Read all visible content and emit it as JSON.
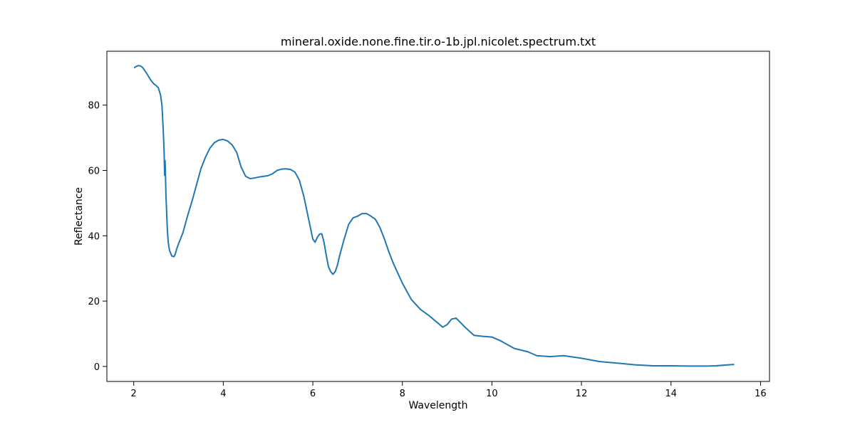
{
  "chart_data": {
    "type": "line",
    "title": "mineral.oxide.none.fine.tir.o-1b.jpl.nicolet.spectrum.txt",
    "xlabel": "Wavelength",
    "ylabel": "Reflectance",
    "xlim": [
      1.4,
      16.2
    ],
    "ylim": [
      -4.6,
      96.5
    ],
    "xticks": [
      2,
      4,
      6,
      8,
      10,
      12,
      14,
      16
    ],
    "yticks": [
      0,
      20,
      40,
      60,
      80
    ],
    "grid": false,
    "legend": "none",
    "series": [
      {
        "color": "#1f77b4",
        "x": [
          2.02,
          2.05,
          2.08,
          2.1,
          2.15,
          2.2,
          2.25,
          2.3,
          2.35,
          2.4,
          2.45,
          2.5,
          2.55,
          2.6,
          2.63,
          2.66,
          2.68,
          2.69,
          2.7,
          2.71,
          2.72,
          2.73,
          2.75,
          2.77,
          2.8,
          2.85,
          2.9,
          2.93,
          2.96,
          3.0,
          3.1,
          3.2,
          3.3,
          3.4,
          3.5,
          3.6,
          3.7,
          3.8,
          3.9,
          4.0,
          4.1,
          4.2,
          4.3,
          4.4,
          4.5,
          4.6,
          4.7,
          4.8,
          4.9,
          5.0,
          5.1,
          5.2,
          5.3,
          5.4,
          5.5,
          5.6,
          5.7,
          5.8,
          5.9,
          6.0,
          6.05,
          6.1,
          6.15,
          6.2,
          6.25,
          6.3,
          6.35,
          6.4,
          6.45,
          6.5,
          6.55,
          6.6,
          6.7,
          6.8,
          6.9,
          7.0,
          7.1,
          7.2,
          7.3,
          7.4,
          7.5,
          7.6,
          7.7,
          7.8,
          7.9,
          8.0,
          8.2,
          8.4,
          8.6,
          8.8,
          8.9,
          9.0,
          9.1,
          9.2,
          9.4,
          9.6,
          9.8,
          10.0,
          10.2,
          10.5,
          10.8,
          11.0,
          11.3,
          11.6,
          12.0,
          12.4,
          12.8,
          13.2,
          13.6,
          14.0,
          14.4,
          14.8,
          15.0,
          15.2,
          15.4
        ],
        "values": [
          91.5,
          91.8,
          92.0,
          92.1,
          92.0,
          91.5,
          90.5,
          89.5,
          88.3,
          87.3,
          86.5,
          86.0,
          85.3,
          83.0,
          80.0,
          72.0,
          65.0,
          58.5,
          63.0,
          58.0,
          52.0,
          49.0,
          42.0,
          38.0,
          35.5,
          33.8,
          33.6,
          34.5,
          36.0,
          37.5,
          41.0,
          46.0,
          50.5,
          55.5,
          60.5,
          64.0,
          66.8,
          68.5,
          69.3,
          69.5,
          69.0,
          67.8,
          65.5,
          61.0,
          58.2,
          57.5,
          57.7,
          58.0,
          58.2,
          58.4,
          59.0,
          60.0,
          60.4,
          60.5,
          60.3,
          59.5,
          57.0,
          52.0,
          45.5,
          39.0,
          38.0,
          39.5,
          40.5,
          40.6,
          38.0,
          34.0,
          30.5,
          29.0,
          28.2,
          29.0,
          31.0,
          34.0,
          39.0,
          43.5,
          45.5,
          46.0,
          46.8,
          46.8,
          46.0,
          45.0,
          42.5,
          39.0,
          35.0,
          31.5,
          28.5,
          25.5,
          20.5,
          17.5,
          15.5,
          13.2,
          12.0,
          12.8,
          14.5,
          14.8,
          12.0,
          9.5,
          9.2,
          9.0,
          7.8,
          5.5,
          4.5,
          3.3,
          3.0,
          3.3,
          2.5,
          1.5,
          1.0,
          0.5,
          0.2,
          0.2,
          0.1,
          0.1,
          0.2,
          0.4,
          0.6
        ]
      }
    ]
  }
}
